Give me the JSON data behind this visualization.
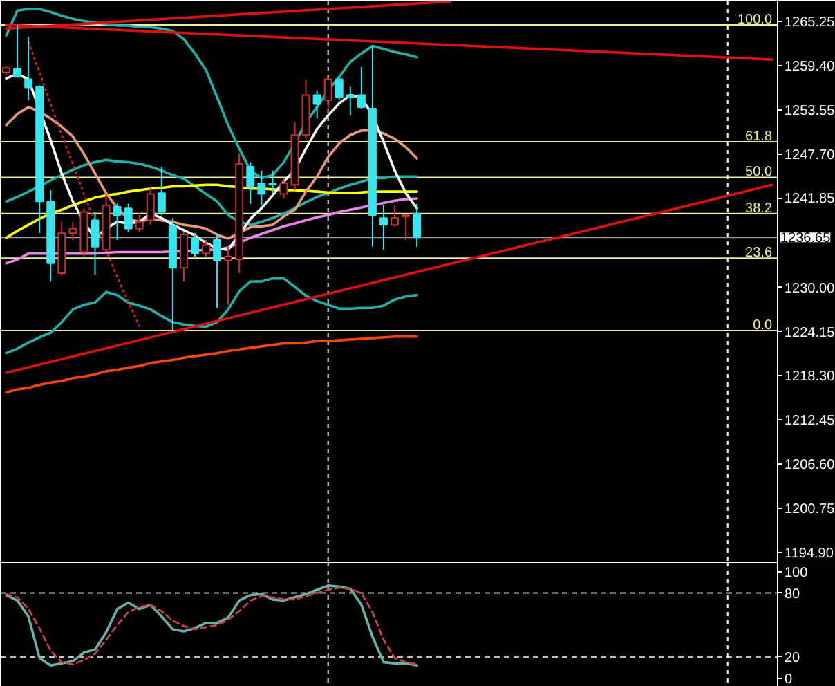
{
  "chart_data": [
    {
      "type": "candlestick",
      "tick_labels": "y",
      "categories": [
        null,
        null,
        null,
        null,
        null,
        null,
        null,
        null,
        null,
        null,
        null,
        null,
        null,
        null,
        null,
        null,
        null,
        null,
        null,
        null,
        null,
        null,
        null,
        null,
        null,
        null,
        null,
        null,
        null,
        null,
        null,
        null,
        null,
        null,
        null,
        null,
        null,
        null,
        null,
        null,
        null,
        null,
        null,
        null,
        null,
        null,
        null,
        null,
        null,
        null,
        null,
        null,
        null,
        null,
        null,
        null,
        null,
        null,
        null,
        null,
        null,
        null,
        null,
        null,
        null,
        null,
        null,
        null,
        null,
        null
      ],
      "ohlc": [
        [
          1258.5,
          1259.4,
          1258.2,
          1259.1
        ],
        [
          1259.0,
          1264.8,
          1257.8,
          1257.9
        ],
        [
          1257.6,
          1263.2,
          1254.8,
          1256.5
        ],
        [
          1256.6,
          1256.8,
          1237.2,
          1241.4
        ],
        [
          1241.4,
          1242.9,
          1230.8,
          1233.2
        ],
        [
          1231.9,
          1238.7,
          1231.6,
          1237.2
        ],
        [
          1237.2,
          1238.7,
          1236.3,
          1237.8
        ],
        [
          1234.7,
          1240.5,
          1234.1,
          1240.0
        ],
        [
          1238.9,
          1240.0,
          1231.7,
          1235.4
        ],
        [
          1235.0,
          1242.4,
          1234.7,
          1240.9
        ],
        [
          1240.7,
          1241.1,
          1236.3,
          1239.6
        ],
        [
          1240.5,
          1241.1,
          1237.4,
          1237.8
        ],
        [
          1237.8,
          1240.0,
          1237.4,
          1238.7
        ],
        [
          1238.9,
          1243.3,
          1238.3,
          1242.4
        ],
        [
          1242.5,
          1246.0,
          1239.6,
          1240.0
        ],
        [
          1238.1,
          1239.2,
          1224.3,
          1232.6
        ],
        [
          1232.6,
          1237.4,
          1230.8,
          1237.0
        ],
        [
          1236.5,
          1237.2,
          1234.1,
          1234.5
        ],
        [
          1234.5,
          1236.3,
          1234.1,
          1235.6
        ],
        [
          1236.3,
          1237.2,
          1227.3,
          1233.6
        ],
        [
          1233.6,
          1235.4,
          1227.7,
          1234.1
        ],
        [
          1233.7,
          1247.8,
          1231.9,
          1246.4
        ],
        [
          1246.0,
          1246.6,
          1241.1,
          1243.3
        ],
        [
          1243.8,
          1245.5,
          1240.9,
          1242.4
        ],
        [
          1243.8,
          1245.5,
          1242.4,
          1243.6
        ],
        [
          1242.4,
          1244.5,
          1241.8,
          1243.8
        ],
        [
          1243.6,
          1251.9,
          1242.9,
          1250.2
        ],
        [
          1250.2,
          1257.6,
          1249.7,
          1255.5
        ],
        [
          1255.5,
          1256.1,
          1252.4,
          1254.3
        ],
        [
          1254.8,
          1257.9,
          1253.0,
          1257.6
        ],
        [
          1257.6,
          1257.9,
          1254.8,
          1255.2
        ],
        [
          1255.5,
          1256.6,
          1252.8,
          1255.2
        ],
        [
          1255.5,
          1259.2,
          1253.7,
          1253.9
        ],
        [
          1253.7,
          1262.1,
          1235.4,
          1239.6
        ],
        [
          1239.2,
          1240.9,
          1235.0,
          1238.3
        ],
        [
          1238.3,
          1240.9,
          1238.1,
          1239.2
        ],
        [
          1239.4,
          1239.6,
          1236.3,
          1239.6
        ],
        [
          1239.8,
          1241.1,
          1235.4,
          1236.65
        ],
        null,
        null,
        null,
        null,
        null,
        null,
        null,
        null,
        null,
        null,
        null,
        null,
        null,
        null,
        null,
        null,
        null,
        null,
        null,
        null,
        null,
        null,
        null,
        null,
        null,
        null,
        null,
        null,
        null,
        null,
        null,
        null
      ],
      "colors": [
        "#d03030",
        "#33e6f0",
        "#33e6f0",
        "#33e6f0",
        "#33e6f0",
        "#d03030",
        "#d03030",
        "#d03030",
        "#33e6f0",
        "#d03030",
        "#33e6f0",
        "#33e6f0",
        "#d03030",
        "#d03030",
        "#33e6f0",
        "#33e6f0",
        "#d03030",
        "#33e6f0",
        "#d03030",
        "#33e6f0",
        "#d03030",
        "#d03030",
        "#33e6f0",
        "#33e6f0",
        "#33e6f0",
        "#d03030",
        "#d03030",
        "#d03030",
        "#33e6f0",
        "#d03030",
        "#33e6f0",
        "#33e6f0",
        "#33e6f0",
        "#33e6f0",
        "#33e6f0",
        "#d03030",
        "#d03030",
        "#33e6f0",
        null,
        null,
        null,
        null,
        null,
        null,
        null,
        null,
        null,
        null,
        null,
        null,
        null,
        null,
        null,
        null,
        null,
        null,
        null,
        null,
        null,
        null,
        null,
        null,
        null,
        null,
        null,
        null,
        null,
        null,
        null,
        null
      ],
      "ylim": [
        1193.6,
        1268.0
      ],
      "yticks": [
        {
          "value": 1194.9,
          "label": "1194.90"
        },
        1200.75,
        {
          "value": 1206.6,
          "label": "1206.60"
        },
        1212.45,
        {
          "value": 1218.3,
          "label": "1218.30"
        },
        1224.15,
        {
          "value": 1230,
          "label": "1230.00"
        },
        1241.85,
        {
          "value": 1247.7,
          "label": "1247.70"
        },
        1253.55,
        {
          "value": 1259.4,
          "label": "1259.40"
        },
        1265.25
      ],
      "series": [
        {
          "type": "line",
          "color": "#20b2aa",
          "values": [
            1263.4,
            1266.7,
            1266.9,
            1266.9,
            1266.5,
            1266.0,
            1265.6,
            1265.3,
            1265.1,
            1264.9,
            1264.7,
            1264.7,
            1264.5,
            1264.5,
            1264.3,
            1264.0,
            1262.9,
            1261.0,
            1258.8,
            1255.2,
            1251.5,
            1248.4,
            1245.5,
            1244.5,
            1244.9,
            1246.6,
            1249.1,
            1251.9,
            1253.9,
            1256.1,
            1257.9,
            1259.9,
            1261.0,
            1262.0,
            1261.6,
            1261.2,
            1260.9,
            1260.5,
            null,
            null,
            null,
            null,
            null,
            null,
            null,
            null,
            null,
            null,
            null,
            null,
            null,
            null,
            null,
            null,
            null,
            null,
            null,
            null,
            null,
            null,
            null,
            null,
            null,
            null,
            null,
            null,
            null,
            null,
            null,
            null
          ]
        },
        {
          "type": "line",
          "color": "#20b2aa",
          "values": [
            1241.4,
            1242.0,
            1242.7,
            1243.4,
            1244.2,
            1244.9,
            1245.6,
            1246.2,
            1246.6,
            1246.9,
            1246.7,
            1246.6,
            1246.4,
            1246.0,
            1245.5,
            1244.9,
            1244.4,
            1243.4,
            1242.4,
            1241.4,
            1239.6,
            1238.7,
            1238.3,
            1238.7,
            1239.2,
            1239.8,
            1240.5,
            1241.3,
            1242.0,
            1242.5,
            1243.1,
            1243.6,
            1244.0,
            1244.5,
            1244.5,
            1244.7,
            1244.7,
            1244.7,
            null,
            null,
            null,
            null,
            null,
            null,
            null,
            null,
            null,
            null,
            null,
            null,
            null,
            null,
            null,
            null,
            null,
            null,
            null,
            null,
            null,
            null,
            null,
            null,
            null,
            null,
            null,
            null,
            null,
            null,
            null,
            null
          ]
        },
        {
          "type": "line",
          "color": "#20b2aa",
          "values": [
            1221.3,
            1221.9,
            1222.7,
            1223.4,
            1224.0,
            1225.4,
            1227.1,
            1227.7,
            1228.0,
            1229.4,
            1229.0,
            1228.0,
            1227.6,
            1227.1,
            1226.2,
            1225.4,
            1225.1,
            1224.9,
            1224.8,
            1225.4,
            1227.1,
            1229.5,
            1230.8,
            1230.8,
            1231.2,
            1231.2,
            1230.1,
            1228.9,
            1228.2,
            1227.7,
            1227.2,
            1227.2,
            1227.3,
            1227.3,
            1227.6,
            1228.4,
            1228.8,
            1229.0,
            null,
            null,
            null,
            null,
            null,
            null,
            null,
            null,
            null,
            null,
            null,
            null,
            null,
            null,
            null,
            null,
            null,
            null,
            null,
            null,
            null,
            null,
            null,
            null,
            null,
            null,
            null,
            null,
            null,
            null,
            null,
            null
          ]
        },
        {
          "type": "line",
          "color": "#ff4500",
          "values": [
            1216.1,
            1216.5,
            1216.7,
            1217.1,
            1217.4,
            1217.6,
            1218.0,
            1218.2,
            1218.5,
            1218.9,
            1219.1,
            1219.4,
            1219.6,
            1220.0,
            1220.2,
            1220.4,
            1220.7,
            1220.9,
            1221.1,
            1221.3,
            1221.6,
            1221.8,
            1222.0,
            1222.2,
            1222.4,
            1222.6,
            1222.6,
            1222.7,
            1222.9,
            1222.9,
            1223.0,
            1223.1,
            1223.2,
            1223.3,
            1223.4,
            1223.5,
            1223.5,
            1223.5,
            null,
            null,
            null,
            null,
            null,
            null,
            null,
            null,
            null,
            null,
            null,
            null,
            null,
            null,
            null,
            null,
            null,
            null,
            null,
            null,
            null,
            null,
            null,
            null,
            null,
            null,
            null,
            null,
            null,
            null,
            null,
            null
          ]
        },
        {
          "type": "line",
          "color": "#ee82ee",
          "values": [
            1233.2,
            1233.7,
            1234.5,
            1234.5,
            1234.5,
            1234.5,
            1234.5,
            1234.5,
            1234.5,
            1234.6,
            1234.7,
            1234.7,
            1234.7,
            1234.7,
            1234.7,
            1234.8,
            1234.8,
            1234.9,
            1235.0,
            1235.0,
            1235.3,
            1235.9,
            1236.6,
            1237.1,
            1237.6,
            1238.1,
            1238.5,
            1238.9,
            1239.3,
            1239.6,
            1240.0,
            1240.3,
            1240.6,
            1240.9,
            1241.2,
            1241.5,
            1241.7,
            1241.8,
            null,
            null,
            null,
            null,
            null,
            null,
            null,
            null,
            null,
            null,
            null,
            null,
            null,
            null,
            null,
            null,
            null,
            null,
            null,
            null,
            null,
            null,
            null,
            null,
            null,
            null,
            null,
            null,
            null,
            null,
            null,
            null
          ]
        },
        {
          "type": "line",
          "color": "#ffff00",
          "values": [
            1236.6,
            1237.5,
            1238.3,
            1239.1,
            1239.8,
            1240.3,
            1240.9,
            1241.4,
            1241.9,
            1242.2,
            1242.4,
            1242.7,
            1242.9,
            1243.1,
            1243.2,
            1243.4,
            1243.4,
            1243.5,
            1243.6,
            1243.6,
            1243.4,
            1243.3,
            1243.1,
            1243.1,
            1243.0,
            1242.9,
            1242.9,
            1242.8,
            1242.7,
            1242.6,
            1242.5,
            1242.5,
            1242.6,
            1242.7,
            1242.7,
            1242.7,
            1242.7,
            1242.7,
            null,
            null,
            null,
            null,
            null,
            null,
            null,
            null,
            null,
            null,
            null,
            null,
            null,
            null,
            null,
            null,
            null,
            null,
            null,
            null,
            null,
            null,
            null,
            null,
            null,
            null,
            null,
            null,
            null,
            null,
            null,
            null
          ]
        },
        {
          "type": "line",
          "color": "#e9967a",
          "values": [
            1251.5,
            1253.0,
            1253.9,
            1253.3,
            1252.4,
            1251.3,
            1250.0,
            1247.7,
            1245.1,
            1242.5,
            1240.5,
            1239.1,
            1238.7,
            1239.1,
            1238.9,
            1238.7,
            1238.3,
            1238.1,
            1237.8,
            1237.0,
            1236.5,
            1237.2,
            1238.0,
            1238.1,
            1238.3,
            1239.4,
            1240.3,
            1242.7,
            1244.7,
            1247.3,
            1249.1,
            1250.2,
            1250.8,
            1250.8,
            1250.4,
            1249.7,
            1248.6,
            1247.1,
            null,
            null,
            null,
            null,
            null,
            null,
            null,
            null,
            null,
            null,
            null,
            null,
            null,
            null,
            null,
            null,
            null,
            null,
            null,
            null,
            null,
            null,
            null,
            null,
            null,
            null,
            null,
            null,
            null,
            null,
            null,
            null
          ]
        },
        {
          "type": "line",
          "color": "#ffffff",
          "values": [
            1257.7,
            1258.3,
            1257.6,
            null,
            1249.5,
            1245.1,
            1241.4,
            1238.7,
            1236.5,
            1237.8,
            1238.7,
            1238.5,
            1238.7,
            1239.8,
            1239.2,
            1238.3,
            1237.6,
            1236.9,
            1235.9,
            1235.2,
            1235.0,
            1237.0,
            1239.1,
            1240.5,
            1242.2,
            1244.0,
            1245.6,
            1248.4,
            1251.0,
            1252.8,
            1254.4,
            1255.5,
            1255.2,
            1252.8,
            1249.3,
            1245.5,
            1242.5,
            1240.5,
            null,
            null,
            null,
            null,
            null,
            null,
            null,
            null,
            null,
            null,
            null,
            null,
            null,
            null,
            null,
            null,
            null,
            null,
            null,
            null,
            null,
            null,
            null,
            null,
            null,
            null,
            null,
            null,
            null,
            null,
            null,
            null
          ]
        },
        {
          "type": "line",
          "color": "#cc2222",
          "line_style": "dotted",
          "values": [
            null,
            null,
            1262.5,
            1258.5,
            1254.3,
            1250.2,
            1246.4,
            1242.4,
            1238.7,
            1235.0,
            1231.4,
            1228.1,
            1224.9,
            null,
            null,
            null,
            null,
            null,
            null,
            null,
            null,
            null,
            null,
            null,
            null,
            null,
            null,
            null,
            null,
            null,
            null,
            null,
            null,
            null,
            null,
            null,
            null,
            null,
            null,
            null,
            null,
            null,
            null,
            null,
            null,
            null,
            null,
            null,
            null,
            null,
            null,
            null,
            null,
            null,
            null,
            null,
            null,
            null,
            null,
            null,
            null,
            null,
            null,
            null,
            null,
            null,
            null,
            null,
            null,
            null
          ]
        },
        {
          "type": "line",
          "color": "#dd1111",
          "values": [
            1264.3,
            null,
            null,
            null,
            null,
            null,
            null,
            null,
            null,
            null,
            null,
            null,
            null,
            null,
            null,
            null,
            null,
            null,
            null,
            null,
            null,
            null,
            null,
            null,
            null,
            null,
            null,
            null,
            null,
            null,
            null,
            null,
            null,
            null,
            null,
            null,
            null,
            null,
            null,
            null,
            1267.9,
            null,
            null,
            null,
            null,
            null,
            null,
            null,
            null,
            null,
            null,
            null,
            null,
            null,
            null,
            null,
            null,
            null,
            null,
            null,
            null,
            null,
            null,
            null,
            null,
            null,
            null,
            null,
            null,
            null
          ]
        },
        {
          "type": "line",
          "color": "#dd1111",
          "values": [
            1264.8,
            null,
            null,
            null,
            null,
            null,
            null,
            null,
            null,
            null,
            null,
            null,
            null,
            null,
            null,
            null,
            null,
            null,
            null,
            null,
            null,
            null,
            null,
            null,
            null,
            null,
            null,
            null,
            null,
            null,
            null,
            null,
            null,
            null,
            null,
            null,
            null,
            null,
            null,
            null,
            null,
            null,
            null,
            null,
            null,
            null,
            null,
            null,
            null,
            null,
            null,
            null,
            null,
            null,
            null,
            null,
            null,
            null,
            null,
            null,
            null,
            null,
            null,
            null,
            null,
            null,
            null,
            null,
            null,
            1260.2
          ]
        },
        {
          "type": "line",
          "color": "#dd1111",
          "values": [
            1218.7,
            null,
            null,
            null,
            null,
            null,
            null,
            null,
            null,
            null,
            null,
            null,
            null,
            null,
            null,
            null,
            null,
            null,
            null,
            null,
            null,
            null,
            null,
            null,
            null,
            null,
            null,
            null,
            null,
            null,
            null,
            null,
            null,
            null,
            null,
            null,
            null,
            null,
            null,
            null,
            null,
            null,
            null,
            null,
            null,
            null,
            null,
            null,
            null,
            null,
            null,
            null,
            null,
            null,
            null,
            null,
            null,
            null,
            null,
            null,
            null,
            null,
            null,
            null,
            null,
            null,
            null,
            null,
            null,
            1243.6
          ]
        }
      ],
      "ref_lines": [
        {
          "axis": "y",
          "value": 1264.8,
          "color": "#eeee99"
        },
        {
          "axis": "y",
          "value": 1249.3,
          "color": "#eeee99"
        },
        {
          "axis": "y",
          "value": 1244.6,
          "color": "#eeee99"
        },
        {
          "axis": "y",
          "value": 1239.8,
          "color": "#eeee99"
        },
        {
          "axis": "y",
          "value": 1233.9,
          "color": "#eeee99"
        },
        {
          "axis": "y",
          "value": 1224.3,
          "color": "#eeee99"
        },
        {
          "axis": "y",
          "value": 1236.65,
          "label": "1236.65",
          "color": "#9a9a9a"
        }
      ],
      "annotations": [
        {
          "text": "100.0",
          "y": 1264.8
        },
        {
          "text": "61.8",
          "y": 1249.3
        },
        {
          "text": "50.0",
          "y": 1244.6
        },
        {
          "text": "38.2",
          "y": 1239.8
        },
        {
          "text": "23.6",
          "y": 1233.9
        },
        {
          "text": "0.0",
          "y": 1224.3
        }
      ]
    },
    {
      "type": "line",
      "tick_labels": "y",
      "categories": [
        null,
        null,
        null,
        null,
        null,
        null,
        null,
        null,
        null,
        null,
        null,
        null,
        null,
        null,
        null,
        null,
        null,
        null,
        null,
        null,
        null,
        null,
        null,
        null,
        null,
        null,
        null,
        null,
        null,
        null,
        null,
        null,
        null,
        null,
        null,
        null,
        null,
        null,
        null,
        null,
        null,
        null,
        null,
        null,
        null,
        null,
        null,
        null,
        null,
        null,
        null,
        null,
        null,
        null,
        null,
        null,
        null,
        null,
        null,
        null,
        null,
        null,
        null,
        null,
        null,
        null,
        null,
        null,
        null,
        null
      ],
      "ylim": [
        -8,
        109
      ],
      "yticks": [
        0,
        20,
        80,
        100
      ],
      "series": [
        {
          "color": "#66b3a6",
          "values": [
            78,
            73,
            58,
            19,
            12,
            14,
            16,
            24,
            27,
            43,
            65,
            71,
            65,
            69,
            58,
            46,
            44,
            47,
            52,
            52,
            57,
            73,
            78,
            79,
            74,
            73,
            76,
            79,
            83,
            87,
            86,
            84,
            69,
            39,
            15,
            14,
            14,
            12,
            null,
            null,
            null,
            null,
            null,
            null,
            null,
            null,
            null,
            null,
            null,
            null,
            null,
            null,
            null,
            null,
            null,
            null,
            null,
            null,
            null,
            null,
            null,
            null,
            null,
            null,
            null,
            null,
            null,
            null,
            null,
            null
          ]
        },
        {
          "color": "#d04040",
          "line_style": "dashed",
          "values": [
            79,
            76,
            65,
            47,
            26,
            15,
            13,
            17,
            23,
            36,
            50,
            62,
            67,
            69,
            63,
            54,
            49,
            46,
            48,
            50,
            55,
            63,
            73,
            77,
            76,
            74,
            74,
            77,
            80,
            83,
            85,
            84,
            80,
            62,
            36,
            19,
            15,
            13,
            null,
            null,
            null,
            null,
            null,
            null,
            null,
            null,
            null,
            null,
            null,
            null,
            null,
            null,
            null,
            null,
            null,
            null,
            null,
            null,
            null,
            null,
            null,
            null,
            null,
            null,
            null,
            null,
            null,
            null,
            null,
            null
          ]
        }
      ],
      "ref_lines": [
        {
          "axis": "y",
          "value": 80,
          "color": "#c0c0c0",
          "line_style": "dashed"
        },
        {
          "axis": "y",
          "value": 20,
          "color": "#c0c0c0",
          "line_style": "dashed"
        }
      ]
    }
  ]
}
